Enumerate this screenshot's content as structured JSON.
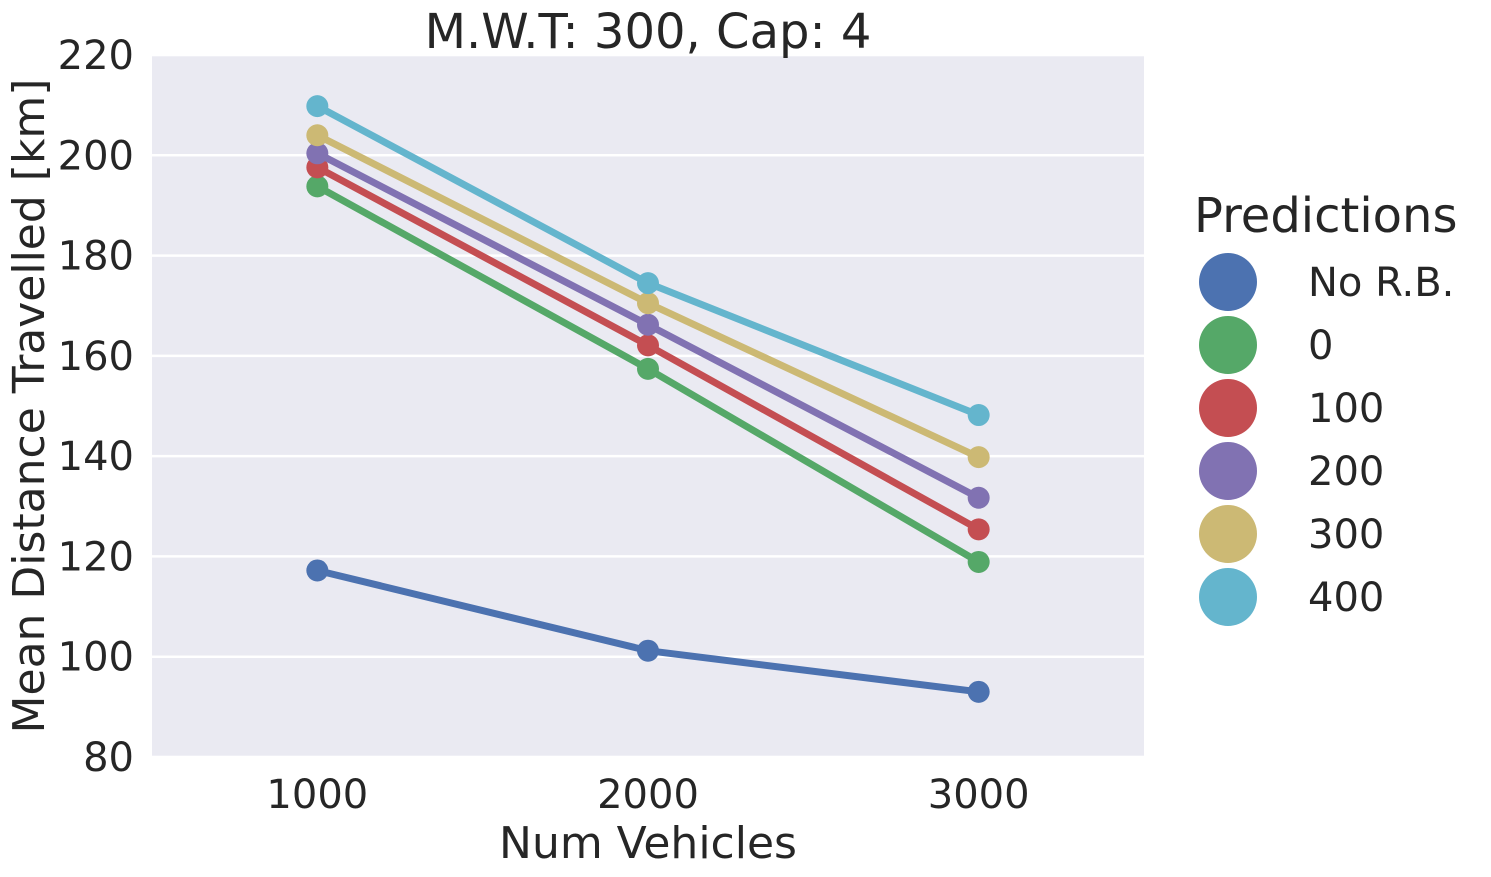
{
  "chart_data": {
    "type": "line",
    "title": "M.W.T: 300, Cap: 4",
    "xlabel": "Num Vehicles",
    "ylabel": "Mean Distance Travelled [km]",
    "x": [
      1000,
      2000,
      3000
    ],
    "x_ticks": [
      "1000",
      "2000",
      "3000"
    ],
    "xlim": [
      500,
      3500
    ],
    "ylim": [
      80,
      220
    ],
    "y_ticks": [
      80,
      100,
      120,
      140,
      160,
      180,
      200,
      220
    ],
    "grid": true,
    "background": "#EAEAF2",
    "legend": {
      "title": "Predictions",
      "placement": "right-outside"
    },
    "series": [
      {
        "name": "No R.B.",
        "color": "#4C72B0",
        "values": [
          117.2,
          101.2,
          93.0
        ]
      },
      {
        "name": "0",
        "color": "#55A868",
        "values": [
          193.8,
          157.4,
          118.9
        ]
      },
      {
        "name": "100",
        "color": "#C44E52",
        "values": [
          197.6,
          162.1,
          125.4
        ]
      },
      {
        "name": "200",
        "color": "#8172B2",
        "values": [
          200.4,
          166.2,
          131.7
        ]
      },
      {
        "name": "300",
        "color": "#CCB974",
        "values": [
          204.0,
          170.5,
          139.8
        ]
      },
      {
        "name": "400",
        "color": "#64B5CD",
        "values": [
          209.8,
          174.5,
          148.2
        ]
      }
    ]
  }
}
